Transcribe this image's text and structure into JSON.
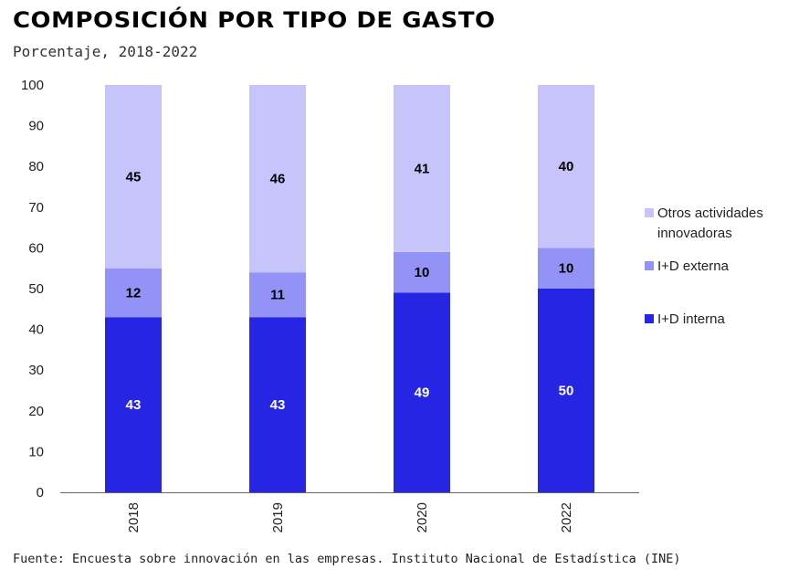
{
  "chart_data": {
    "type": "bar",
    "stacked": true,
    "title": "COMPOSICIÓN POR TIPO DE GASTO",
    "subtitle": "Porcentaje, 2018-2022",
    "source": "Fuente: Encuesta sobre innovación en las empresas. Instituto Nacional de Estadística (INE)",
    "categories": [
      "2018",
      "2019",
      "2020",
      "2022"
    ],
    "ylim": [
      0,
      100
    ],
    "yticks": [
      0,
      10,
      20,
      30,
      40,
      50,
      60,
      70,
      80,
      90,
      100
    ],
    "grid": false,
    "legend_position": "right",
    "series": [
      {
        "name": "I+D interna",
        "values": [
          43,
          43,
          49,
          50
        ],
        "color": "#2525e3",
        "label_color": "#ffffff"
      },
      {
        "name": "I+D externa",
        "values": [
          12,
          11,
          10,
          10
        ],
        "color": "#9393f7",
        "label_color": "#000000"
      },
      {
        "name": "Otros actividades innovadoras",
        "values": [
          45,
          46,
          41,
          40
        ],
        "color": "#c7c4fc",
        "label_color": "#000000"
      }
    ],
    "legend_order": [
      2,
      1,
      0
    ],
    "legend_lines": [
      [
        "Otros actividades",
        "innovadoras"
      ],
      [
        "I+D externa"
      ],
      [
        "I+D interna"
      ]
    ]
  }
}
